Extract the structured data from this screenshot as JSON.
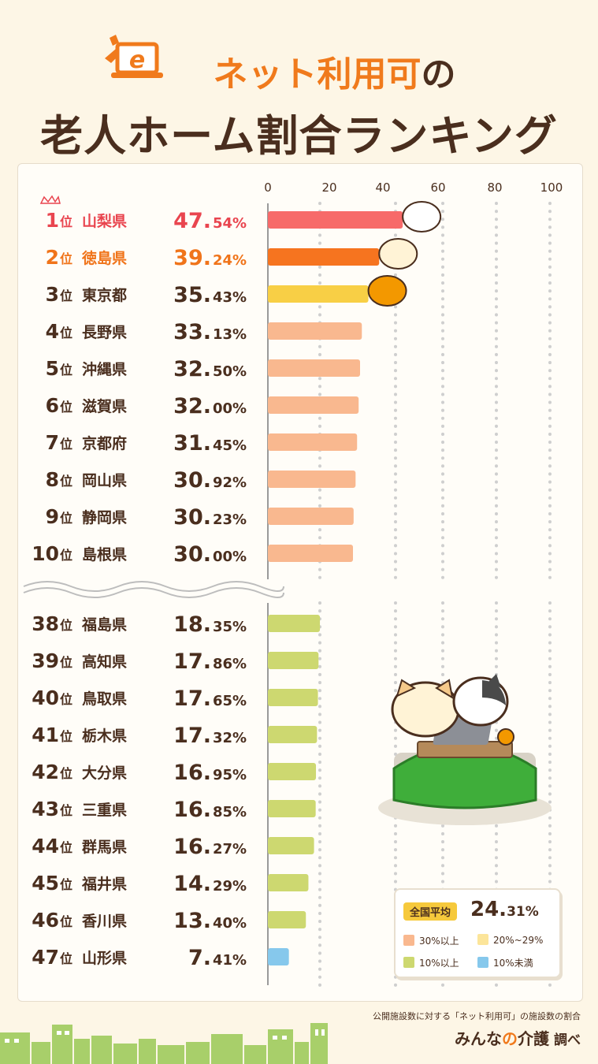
{
  "title": {
    "line1_main": "ネット利用可",
    "line1_particle": "の",
    "line2": "老人ホーム割合ランキング",
    "logo_letter": "e"
  },
  "chart_data": {
    "type": "bar",
    "orientation": "horizontal",
    "xlim": [
      0,
      100
    ],
    "x_ticks": [
      "0",
      "20",
      "40",
      "60",
      "80",
      "100"
    ],
    "axis_break_between_ranks": [
      10,
      38
    ],
    "rank_suffix": "位",
    "top": [
      {
        "rank": "1",
        "pref": "山梨県",
        "value_int": "47.",
        "value_dec": "54%",
        "value": 47.54,
        "color": "#f76a6a",
        "label_color": "#e9454f"
      },
      {
        "rank": "2",
        "pref": "徳島県",
        "value_int": "39.",
        "value_dec": "24%",
        "value": 39.24,
        "color": "#f6741f",
        "label_color": "#f0741a"
      },
      {
        "rank": "3",
        "pref": "東京都",
        "value_int": "35.",
        "value_dec": "43%",
        "value": 35.43,
        "color": "#f8cf45",
        "label_color": "#4a2e1e"
      },
      {
        "rank": "4",
        "pref": "長野県",
        "value_int": "33.",
        "value_dec": "13%",
        "value": 33.13,
        "color": "#f9b88f",
        "label_color": "#4a2e1e"
      },
      {
        "rank": "5",
        "pref": "沖縄県",
        "value_int": "32.",
        "value_dec": "50%",
        "value": 32.5,
        "color": "#f9b88f",
        "label_color": "#4a2e1e"
      },
      {
        "rank": "6",
        "pref": "滋賀県",
        "value_int": "32.",
        "value_dec": "00%",
        "value": 32.0,
        "color": "#f9b88f",
        "label_color": "#4a2e1e"
      },
      {
        "rank": "7",
        "pref": "京都府",
        "value_int": "31.",
        "value_dec": "45%",
        "value": 31.45,
        "color": "#f9b88f",
        "label_color": "#4a2e1e"
      },
      {
        "rank": "8",
        "pref": "岡山県",
        "value_int": "30.",
        "value_dec": "92%",
        "value": 30.92,
        "color": "#f9b88f",
        "label_color": "#4a2e1e"
      },
      {
        "rank": "9",
        "pref": "静岡県",
        "value_int": "30.",
        "value_dec": "23%",
        "value": 30.23,
        "color": "#f9b88f",
        "label_color": "#4a2e1e"
      },
      {
        "rank": "10",
        "pref": "島根県",
        "value_int": "30.",
        "value_dec": "00%",
        "value": 30.0,
        "color": "#f9b88f",
        "label_color": "#4a2e1e"
      }
    ],
    "bottom": [
      {
        "rank": "38",
        "pref": "福島県",
        "value_int": "18.",
        "value_dec": "35%",
        "value": 18.35,
        "color": "#cdd870"
      },
      {
        "rank": "39",
        "pref": "高知県",
        "value_int": "17.",
        "value_dec": "86%",
        "value": 17.86,
        "color": "#cdd870"
      },
      {
        "rank": "40",
        "pref": "鳥取県",
        "value_int": "17.",
        "value_dec": "65%",
        "value": 17.65,
        "color": "#cdd870"
      },
      {
        "rank": "41",
        "pref": "栃木県",
        "value_int": "17.",
        "value_dec": "32%",
        "value": 17.32,
        "color": "#cdd870"
      },
      {
        "rank": "42",
        "pref": "大分県",
        "value_int": "16.",
        "value_dec": "95%",
        "value": 16.95,
        "color": "#cdd870"
      },
      {
        "rank": "43",
        "pref": "三重県",
        "value_int": "16.",
        "value_dec": "85%",
        "value": 16.85,
        "color": "#cdd870"
      },
      {
        "rank": "44",
        "pref": "群馬県",
        "value_int": "16.",
        "value_dec": "27%",
        "value": 16.27,
        "color": "#cdd870"
      },
      {
        "rank": "45",
        "pref": "福井県",
        "value_int": "14.",
        "value_dec": "29%",
        "value": 14.29,
        "color": "#cdd870"
      },
      {
        "rank": "46",
        "pref": "香川県",
        "value_int": "13.",
        "value_dec": "40%",
        "value": 13.4,
        "color": "#cdd870"
      },
      {
        "rank": "47",
        "pref": "山形県",
        "value_int": "7.",
        "value_dec": "41%",
        "value": 7.41,
        "color": "#86c8ec"
      }
    ]
  },
  "legend": {
    "average_label": "全国平均",
    "average_int": "24.",
    "average_dec": "31%",
    "items": [
      {
        "label": "30%以上",
        "color": "#f9b88f"
      },
      {
        "label": "20%~29%",
        "color": "#fce59a"
      },
      {
        "label": "10%以上",
        "color": "#cdd870"
      },
      {
        "label": "10%未満",
        "color": "#86c8ec"
      }
    ]
  },
  "footer": {
    "note": "公開施設数に対する「ネット利用可」の施設数の割合",
    "brand_a": "みんな",
    "brand_o": "の",
    "brand_b": "介護",
    "brand_suffix": "調べ"
  },
  "colors": {
    "accent": "#f07a1c",
    "text": "#4a2e1e",
    "background": "#fdf6e6"
  }
}
